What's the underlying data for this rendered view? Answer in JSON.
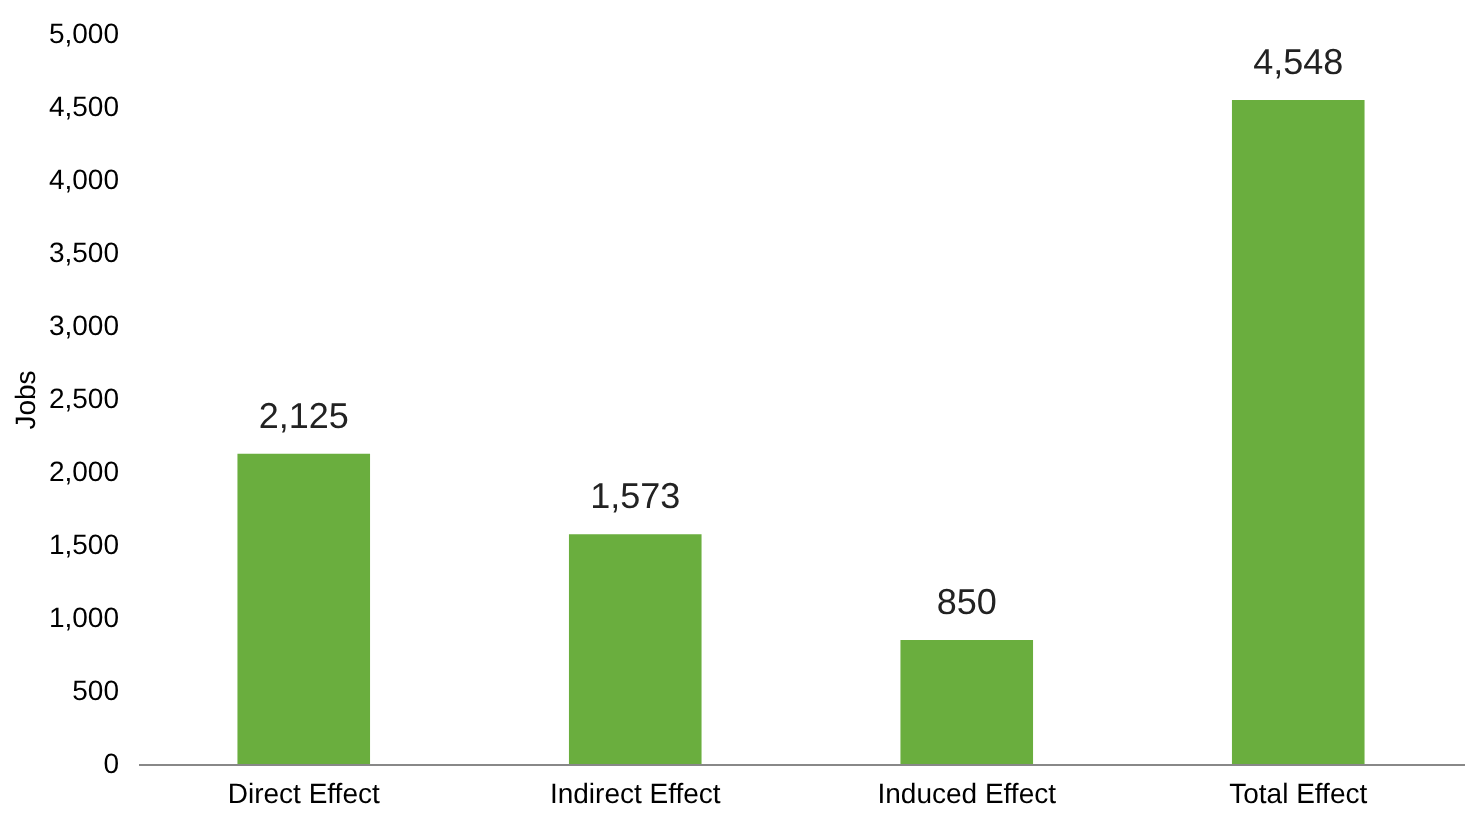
{
  "chart_data": {
    "type": "bar",
    "ylabel": "Jobs",
    "categories": [
      "Direct Effect",
      "Indirect Effect",
      "Induced Effect",
      "Total Effect"
    ],
    "values": [
      2125,
      1573,
      850,
      4548
    ],
    "color": "#6aae3e",
    "value_labels": [
      "2,125",
      "1,573",
      "850",
      "4,548"
    ],
    "ylim": [
      0,
      5000
    ],
    "yticks": [
      0,
      500,
      {
        "value": 1000,
        "label": "1,000"
      },
      {
        "value": 1500,
        "label": "1,500"
      },
      {
        "value": 2000,
        "label": "2,000"
      },
      {
        "value": 2500,
        "label": "2,500"
      },
      {
        "value": 3000,
        "label": "3,000"
      },
      {
        "value": 3500,
        "label": "3,500"
      },
      {
        "value": 4000,
        "label": "4,000"
      },
      {
        "value": 4500,
        "label": "4,500"
      },
      {
        "value": 5000,
        "label": "5,000"
      }
    ],
    "grid": false
  }
}
